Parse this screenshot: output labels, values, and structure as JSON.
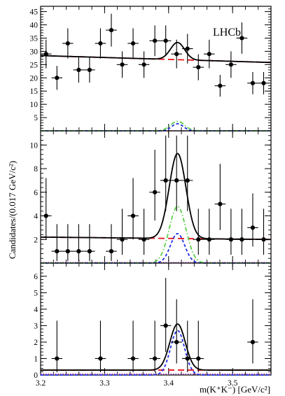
{
  "figure_text": {
    "brand": "LHCb",
    "ylabel": "Candidates/(0.017 GeV/c²)",
    "xlabel": "m(K⁺K⁻) [GeV/c²]"
  },
  "colors": {
    "data": "#000000",
    "total_fit": "#000000",
    "background": "#e8141b",
    "signal_component_1": "#5ccf4a",
    "signal_component_2": "#1f2ee8",
    "flat_component": "#b040c0"
  },
  "chart_data": [
    {
      "type": "scatter",
      "panel": "top",
      "x_label": "m(K⁺K⁻) [GeV/c²]",
      "y_label": "Candidates/(0.017 GeV/c²)",
      "xlim": [
        3.2,
        3.56
      ],
      "ylim": [
        0,
        47
      ],
      "x_ticks": [
        3.2,
        3.3,
        3.4,
        3.5
      ],
      "y_ticks": [
        5,
        10,
        15,
        20,
        25,
        30,
        35,
        40,
        45
      ],
      "brand": "LHCb",
      "bin_half_width": 0.0085,
      "series": [
        {
          "kind": "data_points",
          "x": [
            3.2085,
            3.2255,
            3.2425,
            3.2595,
            3.2765,
            3.2935,
            3.3105,
            3.3275,
            3.3445,
            3.3615,
            3.3785,
            3.3955,
            3.4125,
            3.4295,
            3.4465,
            3.4635,
            3.4805,
            3.4975,
            3.5145,
            3.5315,
            3.5485
          ],
          "y": [
            29,
            20,
            33,
            23,
            23,
            33,
            38,
            25,
            33,
            25,
            34,
            34,
            29,
            31,
            24,
            29,
            17,
            25,
            35,
            18,
            18
          ],
          "yerr": [
            5.4,
            4.5,
            5.7,
            4.8,
            4.8,
            5.7,
            6.2,
            5.0,
            5.7,
            5.0,
            5.8,
            5.8,
            5.4,
            5.6,
            4.9,
            5.4,
            4.1,
            5.0,
            5.9,
            4.2,
            4.2
          ]
        },
        {
          "kind": "total_fit",
          "background_linear": [
            28.4,
            25.8
          ],
          "peak_mean": 3.414,
          "peak_sigma": 0.011,
          "peak_height": 6.5
        },
        {
          "kind": "background",
          "linear": [
            28.4,
            25.8
          ]
        },
        {
          "kind": "signal_component_1",
          "peak_mean": 3.414,
          "peak_sigma": 0.011,
          "peak_height": 3.6
        },
        {
          "kind": "signal_component_2",
          "peak_mean": 3.414,
          "peak_sigma": 0.009,
          "peak_height": 2.7
        },
        {
          "kind": "flat_component",
          "linear": [
            0,
            0
          ]
        }
      ]
    },
    {
      "type": "scatter",
      "panel": "middle",
      "x_label": "m(K⁺K⁻) [GeV/c²]",
      "y_label": "Candidates/(0.017 GeV/c²)",
      "xlim": [
        3.2,
        3.56
      ],
      "ylim": [
        0,
        11.2
      ],
      "x_ticks": [
        3.2,
        3.3,
        3.4,
        3.5
      ],
      "y_ticks": [
        2,
        4,
        6,
        8,
        10
      ],
      "bin_half_width": 0.0085,
      "series": [
        {
          "kind": "data_points",
          "x": [
            3.2085,
            3.2255,
            3.2425,
            3.2595,
            3.2765,
            3.2935,
            3.3105,
            3.3275,
            3.3445,
            3.3615,
            3.3785,
            3.3955,
            3.4125,
            3.4295,
            3.4465,
            3.4635,
            3.4805,
            3.4975,
            3.5145,
            3.5315,
            3.5485
          ],
          "y": [
            4,
            1,
            1,
            1,
            1,
            0,
            1,
            2,
            4,
            2,
            6,
            7,
            7,
            7,
            2,
            2,
            5,
            2,
            2,
            3,
            2
          ],
          "yerr_low": [
            2.0,
            0.83,
            0.83,
            0.83,
            0.83,
            0,
            0.83,
            1.3,
            2.0,
            1.3,
            2.4,
            2.6,
            2.6,
            2.6,
            1.3,
            1.3,
            2.2,
            1.3,
            1.3,
            1.6,
            1.3
          ],
          "yerr_high": [
            3.2,
            2.3,
            2.3,
            2.3,
            2.3,
            0,
            2.3,
            2.6,
            3.2,
            2.6,
            3.6,
            3.8,
            3.8,
            3.8,
            2.6,
            2.6,
            3.4,
            2.6,
            2.6,
            2.9,
            2.6
          ]
        },
        {
          "kind": "total_fit",
          "background_linear": [
            2.2,
            2.0
          ],
          "peak_mean": 3.414,
          "peak_sigma": 0.013,
          "peak_height": 7.2
        },
        {
          "kind": "background",
          "linear": [
            2.2,
            2.0
          ]
        },
        {
          "kind": "signal_component_1",
          "peak_mean": 3.414,
          "peak_sigma": 0.013,
          "peak_height": 4.8
        },
        {
          "kind": "signal_component_2",
          "peak_mean": 3.414,
          "peak_sigma": 0.011,
          "peak_height": 2.5
        },
        {
          "kind": "flat_component",
          "linear": [
            0.05,
            0.05
          ]
        }
      ]
    },
    {
      "type": "scatter",
      "panel": "bottom",
      "x_label": "m(K⁺K⁻) [GeV/c²]",
      "y_label": "Candidates/(0.017 GeV/c²)",
      "xlim": [
        3.2,
        3.56
      ],
      "ylim": [
        0,
        6.8
      ],
      "x_ticks": [
        3.2,
        3.3,
        3.4,
        3.5
      ],
      "y_ticks": [
        0,
        1,
        2,
        3,
        4,
        5,
        6
      ],
      "bin_half_width": 0.0085,
      "series": [
        {
          "kind": "data_points",
          "x": [
            3.2255,
            3.2935,
            3.3445,
            3.3785,
            3.3955,
            3.4125,
            3.4295,
            3.4465,
            3.5315
          ],
          "y": [
            1,
            1,
            1,
            1,
            3,
            2,
            1,
            1,
            2
          ],
          "yerr_low": [
            0.83,
            0.83,
            0.83,
            0.83,
            1.6,
            1.3,
            0.83,
            0.83,
            1.3
          ],
          "yerr_high": [
            2.3,
            2.3,
            2.3,
            2.3,
            2.9,
            2.6,
            2.3,
            2.3,
            2.6
          ]
        },
        {
          "kind": "total_fit",
          "background_linear": [
            0.3,
            0.3
          ],
          "peak_mean": 3.414,
          "peak_sigma": 0.012,
          "peak_height": 2.8
        },
        {
          "kind": "background",
          "linear": [
            0.3,
            0.3
          ]
        },
        {
          "kind": "signal_component_2",
          "peak_mean": 3.414,
          "peak_sigma": 0.011,
          "peak_height": 2.7
        },
        {
          "kind": "flat_component",
          "linear": [
            0.06,
            0.06
          ]
        }
      ]
    }
  ]
}
